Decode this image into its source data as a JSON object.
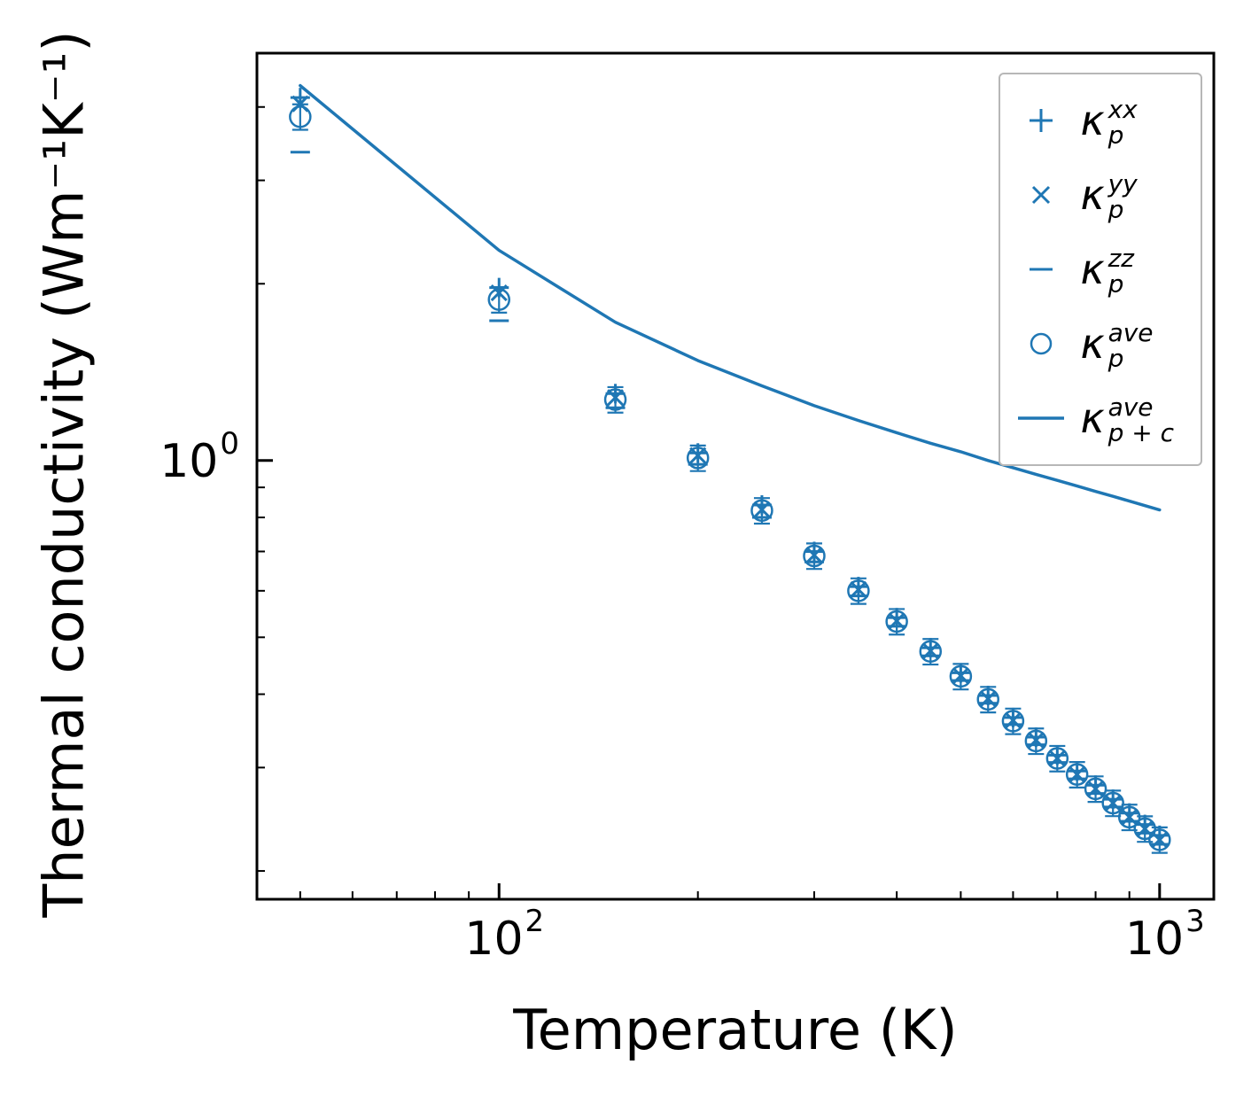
{
  "chart_data": {
    "type": "scatter",
    "title": "",
    "xlabel": "Temperature (K)",
    "ylabel": "Thermal conductivity (Wm⁻¹K⁻¹)",
    "x_scale": "log",
    "y_scale": "log",
    "xlim": [
      43,
      1208
    ],
    "ylim": [
      0.179,
      4.94
    ],
    "x_major_ticks": [
      100,
      1000
    ],
    "y_major_ticks": [
      1
    ],
    "grid": false,
    "legend_position": "upper right",
    "color": "#1f77b4",
    "temperatures": [
      50,
      100,
      150,
      200,
      250,
      300,
      350,
      400,
      450,
      500,
      550,
      600,
      650,
      700,
      750,
      800,
      850,
      900,
      950,
      1000
    ],
    "series": [
      {
        "id": "xx",
        "name": "kappa_p_xx",
        "marker": "plus",
        "values": [
          4.15,
          1.97,
          1.3,
          1.03,
          0.84,
          0.7,
          0.61,
          0.54,
          0.48,
          0.435,
          0.398,
          0.365,
          0.338,
          0.315,
          0.296,
          0.28,
          0.265,
          0.251,
          0.24,
          0.23
        ]
      },
      {
        "id": "yy",
        "name": "kappa_p_yy",
        "marker": "x",
        "values": [
          4.05,
          1.93,
          1.28,
          1.02,
          0.825,
          0.69,
          0.603,
          0.533,
          0.474,
          0.43,
          0.393,
          0.361,
          0.334,
          0.311,
          0.292,
          0.276,
          0.261,
          0.247,
          0.236,
          0.226
        ]
      },
      {
        "id": "zz",
        "name": "kappa_p_zz",
        "marker": "hline",
        "values": [
          3.35,
          1.73,
          1.23,
          0.985,
          0.8,
          0.672,
          0.588,
          0.522,
          0.465,
          0.422,
          0.386,
          0.355,
          0.328,
          0.306,
          0.287,
          0.271,
          0.257,
          0.243,
          0.232,
          0.222
        ]
      },
      {
        "id": "ave",
        "name": "kappa_p_ave",
        "marker": "circle",
        "error_frac": 0.05,
        "values": [
          3.85,
          1.88,
          1.27,
          1.01,
          0.822,
          0.688,
          0.6,
          0.532,
          0.473,
          0.429,
          0.392,
          0.36,
          0.333,
          0.311,
          0.292,
          0.276,
          0.261,
          0.247,
          0.236,
          0.226
        ]
      },
      {
        "id": "p_plus_c",
        "name": "kappa_p_plus_c_ave",
        "marker": "line",
        "values": [
          4.35,
          2.28,
          1.72,
          1.48,
          1.34,
          1.24,
          1.17,
          1.115,
          1.07,
          1.035,
          1.0,
          0.972,
          0.947,
          0.925,
          0.905,
          0.886,
          0.869,
          0.853,
          0.838,
          0.824
        ]
      }
    ],
    "legend": [
      {
        "marker": "plus",
        "symbol": "κ",
        "sup": "xx",
        "sub": "p"
      },
      {
        "marker": "x",
        "symbol": "κ",
        "sup": "yy",
        "sub": "p"
      },
      {
        "marker": "hline",
        "symbol": "κ",
        "sup": "zz",
        "sub": "p"
      },
      {
        "marker": "circle",
        "symbol": "κ",
        "sup": "ave",
        "sub": "p"
      },
      {
        "marker": "line",
        "symbol": "κ",
        "sup": "ave",
        "sub": "p + c"
      }
    ]
  }
}
